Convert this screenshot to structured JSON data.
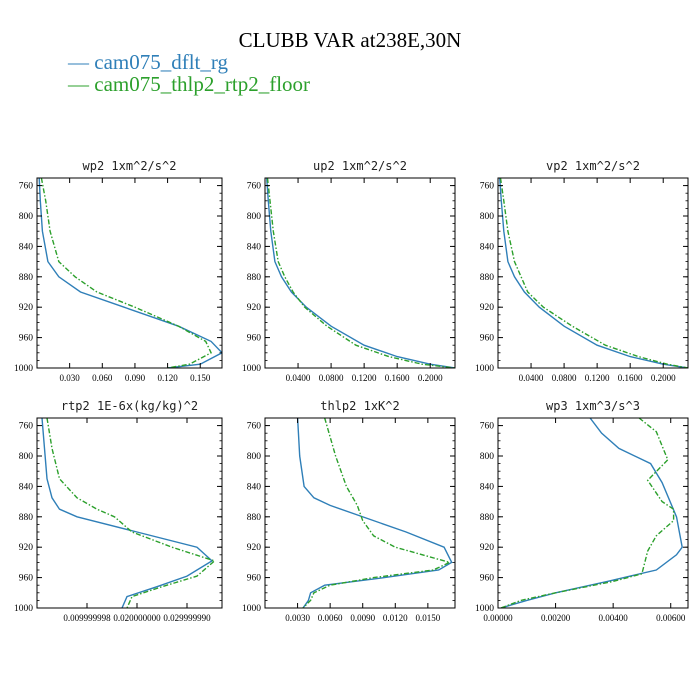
{
  "figure_title": "CLUBB VAR at238E,30N",
  "legend": [
    {
      "label": "— cam075_dflt_rg",
      "color": "#2f7fb8"
    },
    {
      "label": "— cam075_thlp2_rtp2_floor",
      "color": "#2ca02c"
    }
  ],
  "chart_data": [
    {
      "type": "line",
      "title": "wp2  1xm^2/s^2",
      "xlim": [
        0,
        0.17
      ],
      "ylim": [
        1000,
        750
      ],
      "xticks": [
        0.03,
        0.06,
        0.09,
        0.12,
        0.15
      ],
      "xtick_labels": [
        "0.030",
        "0.060",
        "0.090",
        "0.120",
        "0.150"
      ],
      "yticks": [
        760,
        800,
        840,
        880,
        920,
        960,
        1000
      ],
      "series": [
        {
          "name": "cam075_dflt_rg",
          "x": [
            0.002,
            0.003,
            0.005,
            0.01,
            0.02,
            0.04,
            0.08,
            0.13,
            0.16,
            0.17,
            0.15,
            0.12
          ],
          "y": [
            750,
            780,
            820,
            860,
            880,
            900,
            920,
            945,
            965,
            980,
            995,
            1000
          ]
        },
        {
          "name": "cam075_thlp2_rtp2_floor",
          "x": [
            0.004,
            0.008,
            0.012,
            0.02,
            0.035,
            0.055,
            0.09,
            0.13,
            0.155,
            0.16,
            0.14,
            0.12
          ],
          "y": [
            750,
            780,
            820,
            860,
            880,
            900,
            920,
            945,
            965,
            980,
            995,
            1000
          ]
        }
      ]
    },
    {
      "type": "line",
      "title": "up2  1xm^2/s^2",
      "xlim": [
        0,
        0.23
      ],
      "ylim": [
        1000,
        750
      ],
      "xticks": [
        0.04,
        0.08,
        0.12,
        0.16,
        0.2
      ],
      "xtick_labels": [
        "0.0400",
        "0.0800",
        "0.1200",
        "0.1600",
        "0.2000"
      ],
      "yticks": [
        760,
        800,
        840,
        880,
        920,
        960,
        1000
      ],
      "series": [
        {
          "name": "cam075_dflt_rg",
          "x": [
            0.002,
            0.004,
            0.007,
            0.012,
            0.02,
            0.032,
            0.05,
            0.08,
            0.12,
            0.16,
            0.2,
            0.23
          ],
          "y": [
            750,
            780,
            820,
            860,
            880,
            900,
            920,
            945,
            970,
            985,
            995,
            1000
          ]
        },
        {
          "name": "cam075_thlp2_rtp2_floor",
          "x": [
            0.003,
            0.006,
            0.01,
            0.016,
            0.024,
            0.034,
            0.048,
            0.075,
            0.11,
            0.15,
            0.19,
            0.23
          ],
          "y": [
            750,
            780,
            820,
            860,
            880,
            900,
            920,
            945,
            970,
            985,
            995,
            1000
          ]
        }
      ]
    },
    {
      "type": "line",
      "title": "vp2  1xm^2/s^2",
      "xlim": [
        0,
        0.23
      ],
      "ylim": [
        1000,
        750
      ],
      "xticks": [
        0.04,
        0.08,
        0.12,
        0.16,
        0.2
      ],
      "xtick_labels": [
        "0.0400",
        "0.0800",
        "0.1200",
        "0.1600",
        "0.2000"
      ],
      "yticks": [
        760,
        800,
        840,
        880,
        920,
        960,
        1000
      ],
      "series": [
        {
          "name": "cam075_dflt_rg",
          "x": [
            0.002,
            0.004,
            0.007,
            0.012,
            0.02,
            0.032,
            0.05,
            0.08,
            0.12,
            0.16,
            0.2,
            0.23
          ],
          "y": [
            750,
            780,
            820,
            860,
            880,
            900,
            920,
            945,
            970,
            985,
            995,
            1000
          ]
        },
        {
          "name": "cam075_thlp2_rtp2_floor",
          "x": [
            0.003,
            0.007,
            0.012,
            0.02,
            0.028,
            0.036,
            0.055,
            0.09,
            0.13,
            0.17,
            0.205,
            0.23
          ],
          "y": [
            750,
            780,
            820,
            860,
            880,
            900,
            920,
            945,
            970,
            985,
            995,
            1000
          ]
        }
      ]
    },
    {
      "type": "line",
      "title": "rtp2  1E-6x(kg/kg)^2",
      "xlim": [
        0,
        0.037
      ],
      "ylim": [
        1000,
        750
      ],
      "xticks": [
        0.01,
        0.02,
        0.03
      ],
      "xtick_labels": [
        "0.009999998",
        "0.020000000",
        "0.029999990"
      ],
      "yticks": [
        760,
        800,
        840,
        880,
        920,
        960,
        1000
      ],
      "series": [
        {
          "name": "cam075_dflt_rg",
          "x": [
            0.001,
            0.0015,
            0.002,
            0.003,
            0.0045,
            0.008,
            0.02,
            0.032,
            0.035,
            0.03,
            0.024,
            0.018,
            0.017
          ],
          "y": [
            750,
            790,
            830,
            855,
            870,
            880,
            900,
            920,
            938,
            958,
            972,
            985,
            1000
          ]
        },
        {
          "name": "cam075_thlp2_rtp2_floor",
          "x": [
            0.002,
            0.003,
            0.0045,
            0.008,
            0.012,
            0.0155,
            0.019,
            0.027,
            0.0355,
            0.032,
            0.025,
            0.019,
            0.018
          ],
          "y": [
            750,
            790,
            830,
            855,
            870,
            880,
            900,
            920,
            938,
            958,
            972,
            985,
            1000
          ]
        }
      ]
    },
    {
      "type": "line",
      "title": "thlp2  1xK^2",
      "xlim": [
        0,
        0.0175
      ],
      "ylim": [
        1000,
        750
      ],
      "xticks": [
        0.003,
        0.006,
        0.009,
        0.012,
        0.015
      ],
      "xtick_labels": [
        "0.0030",
        "0.0060",
        "0.0090",
        "0.0120",
        "0.0150"
      ],
      "yticks": [
        760,
        800,
        840,
        880,
        920,
        960,
        1000
      ],
      "series": [
        {
          "name": "cam075_dflt_rg",
          "x": [
            0.003,
            0.0032,
            0.0036,
            0.0045,
            0.006,
            0.013,
            0.0165,
            0.0172,
            0.016,
            0.011,
            0.0055,
            0.0042,
            0.004,
            0.0035
          ],
          "y": [
            750,
            800,
            840,
            855,
            865,
            900,
            920,
            940,
            950,
            960,
            970,
            980,
            990,
            1000
          ]
        },
        {
          "name": "cam075_thlp2_rtp2_floor",
          "x": [
            0.0055,
            0.0065,
            0.0075,
            0.0085,
            0.009,
            0.01,
            0.012,
            0.017,
            0.0155,
            0.01,
            0.006,
            0.0045,
            0.0042,
            0.0035
          ],
          "y": [
            750,
            800,
            840,
            865,
            885,
            905,
            920,
            940,
            950,
            960,
            970,
            980,
            990,
            1000
          ]
        }
      ]
    },
    {
      "type": "line",
      "title": "wp3  1xm^3/s^3",
      "xlim": [
        0,
        0.0066
      ],
      "ylim": [
        1000,
        750
      ],
      "xticks": [
        0.0,
        0.002,
        0.004,
        0.006
      ],
      "xtick_labels": [
        "0.00000",
        "0.00200",
        "0.00400",
        "0.00600"
      ],
      "yticks": [
        760,
        800,
        840,
        880,
        920,
        960,
        1000
      ],
      "series": [
        {
          "name": "cam075_dflt_rg",
          "x": [
            0.0032,
            0.0036,
            0.0042,
            0.0053,
            0.0057,
            0.0062,
            0.0064,
            0.0062,
            0.0055,
            0.0038,
            0.002,
            0.001,
            0.0001
          ],
          "y": [
            750,
            770,
            790,
            810,
            835,
            880,
            920,
            930,
            950,
            965,
            980,
            990,
            1000
          ]
        },
        {
          "name": "cam075_thlp2_rtp2_floor",
          "x": [
            0.0049,
            0.0055,
            0.0059,
            0.0052,
            0.0057,
            0.0061,
            0.0061,
            0.0055,
            0.0052,
            0.005,
            0.004,
            0.002,
            0.0008,
            0.0001
          ],
          "y": [
            750,
            768,
            805,
            832,
            860,
            870,
            885,
            905,
            925,
            955,
            965,
            980,
            990,
            1000
          ]
        }
      ]
    }
  ]
}
